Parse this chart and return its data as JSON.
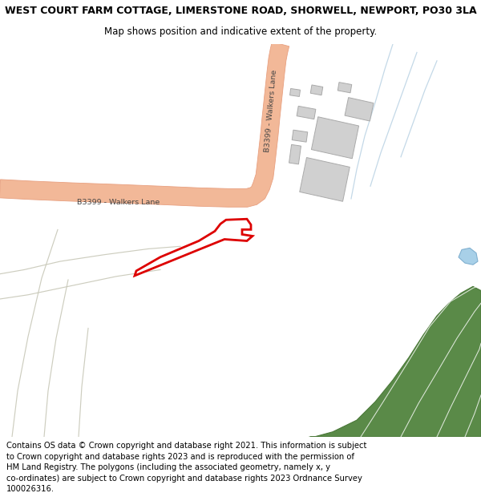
{
  "title_line1": "WEST COURT FARM COTTAGE, LIMERSTONE ROAD, SHORWELL, NEWPORT, PO30 3LA",
  "title_line2": "Map shows position and indicative extent of the property.",
  "footer": "Contains OS data © Crown copyright and database right 2021. This information is subject to Crown copyright and database rights 2023 and is reproduced with the permission of HM Land Registry. The polygons (including the associated geometry, namely x, y co-ordinates) are subject to Crown copyright and database rights 2023 Ordnance Survey 100026316.",
  "map_bg": "#f5f5f2",
  "road_fill": "#f2b898",
  "road_edge": "#e8a080",
  "green_fill": "#5a8a48",
  "green_edge": "#4a7838",
  "building_fill": "#d0d0d0",
  "building_edge": "#aaaaaa",
  "plot_fill": "#ffffff",
  "plot_edge": "#dd0000",
  "water_fill": "#a8d0e8",
  "water_edge": "#80b0d0",
  "light_blue": "#b0cce0",
  "field_line": "#c8c8b8",
  "road_label_color": "#444444",
  "title_fontsize": 9.0,
  "subtitle_fontsize": 8.5,
  "footer_fontsize": 7.2,
  "label_fontsize": 6.8
}
